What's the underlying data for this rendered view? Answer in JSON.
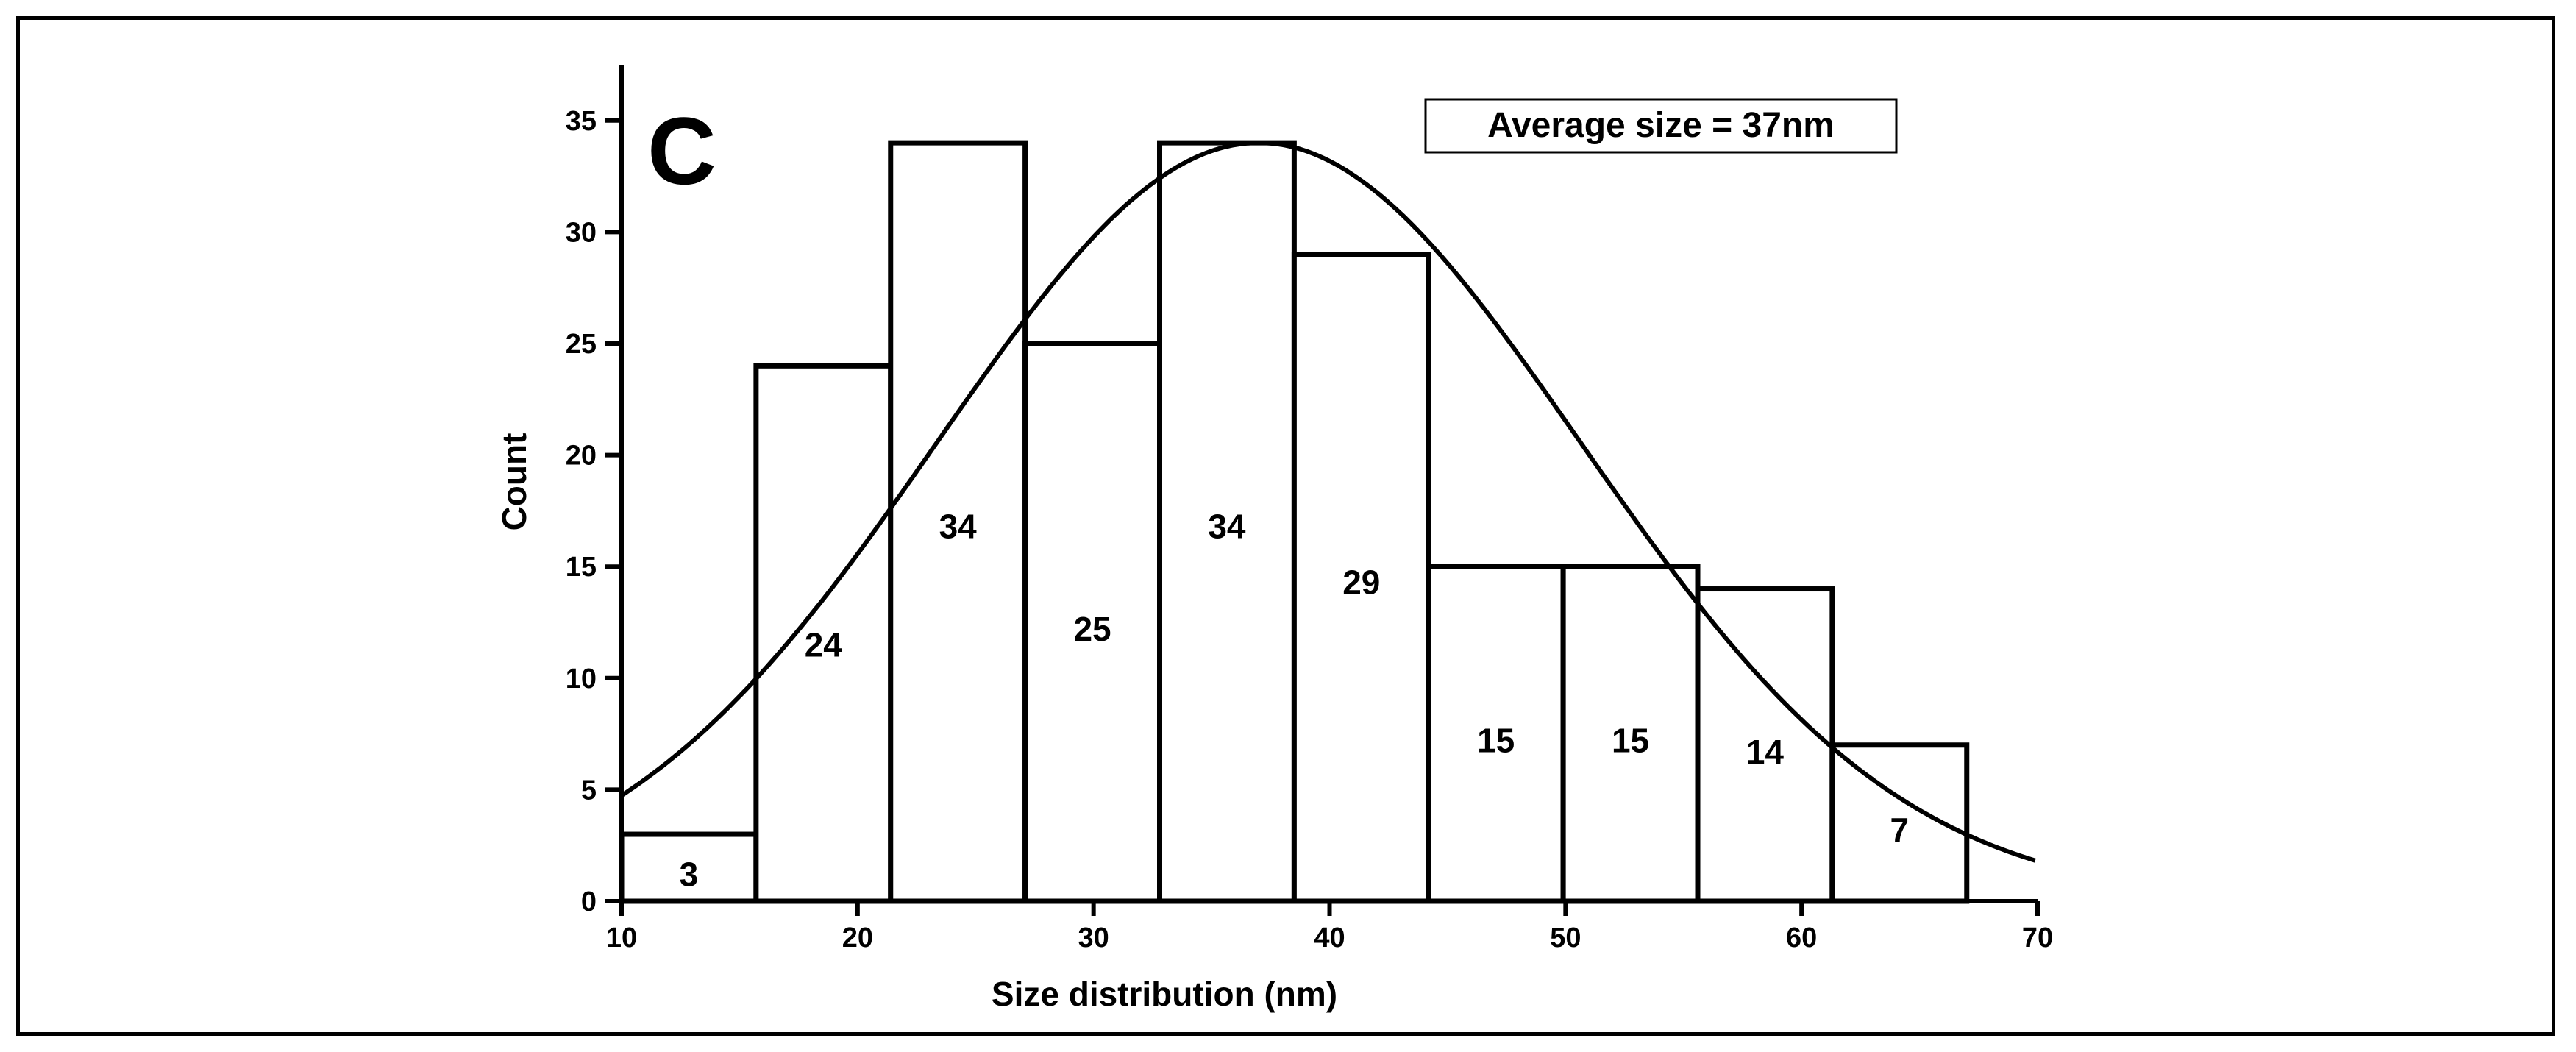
{
  "chart_data": {
    "type": "bar",
    "title": "",
    "panel_label": "C",
    "annotation": "Average size = 37nm",
    "xlabel": "Size distribution (nm)",
    "ylabel": "Count",
    "xlim": [
      10,
      70
    ],
    "ylim": [
      0,
      37.5
    ],
    "xticks": [
      10,
      20,
      30,
      40,
      50,
      60,
      70
    ],
    "yticks": [
      0,
      5,
      10,
      15,
      20,
      25,
      30,
      35
    ],
    "bins": [
      {
        "start": 10.0,
        "end": 15.7,
        "value": 3
      },
      {
        "start": 15.7,
        "end": 21.4,
        "value": 24
      },
      {
        "start": 21.4,
        "end": 27.1,
        "value": 34
      },
      {
        "start": 27.1,
        "end": 32.8,
        "value": 25
      },
      {
        "start": 32.8,
        "end": 38.5,
        "value": 34
      },
      {
        "start": 38.5,
        "end": 44.2,
        "value": 29
      },
      {
        "start": 44.2,
        "end": 49.9,
        "value": 15
      },
      {
        "start": 49.9,
        "end": 55.6,
        "value": 15
      },
      {
        "start": 55.6,
        "end": 61.3,
        "value": 14
      },
      {
        "start": 61.3,
        "end": 67.0,
        "value": 7
      }
    ],
    "bar_label_y": [
      1.2,
      11.5,
      16.8,
      12.2,
      16.8,
      14.3,
      7.2,
      7.2,
      6.7,
      3.2
    ],
    "fit_curve": {
      "type": "gaussian",
      "mean": 37,
      "sd": 13.6,
      "amplitude": 34
    },
    "grid": false
  }
}
